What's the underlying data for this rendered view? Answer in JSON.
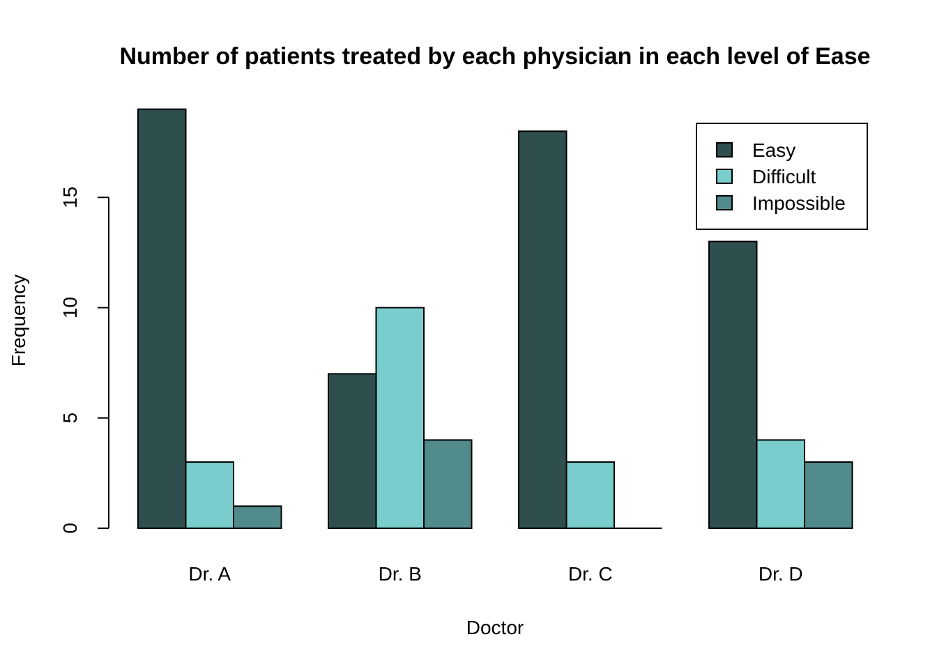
{
  "chart_data": {
    "type": "bar",
    "title": "Number of patients treated by each physician in each level of Ease",
    "xlabel": "Doctor",
    "ylabel": "Frequency",
    "categories": [
      "Dr. A",
      "Dr. B",
      "Dr. C",
      "Dr. D"
    ],
    "series": [
      {
        "name": "Easy",
        "values": [
          19,
          7,
          18,
          13
        ],
        "color": "#2F4F4F"
      },
      {
        "name": "Difficult",
        "values": [
          3,
          10,
          3,
          4
        ],
        "color": "#79CDCD"
      },
      {
        "name": "Impossible",
        "values": [
          1,
          4,
          0,
          3
        ],
        "color": "#528B8B"
      }
    ],
    "yticks": [
      0,
      5,
      10,
      15
    ],
    "ylim": [
      0,
      19
    ],
    "grid": false,
    "legend_position": "top-right"
  }
}
